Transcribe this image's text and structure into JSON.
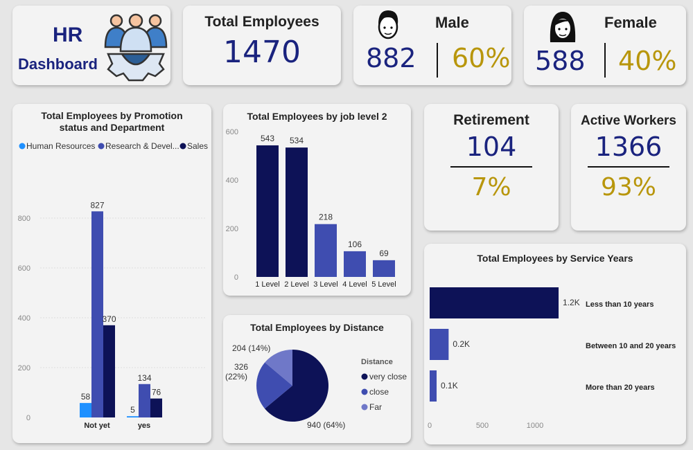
{
  "header": {
    "hr": "HR",
    "dashboard": "Dashboard"
  },
  "total": {
    "label": "Total Employees",
    "value": "1470"
  },
  "male": {
    "label": "Male",
    "value": "882",
    "pct": "60%"
  },
  "female": {
    "label": "Female",
    "value": "588",
    "pct": "40%"
  },
  "retirement": {
    "label": "Retirement",
    "value": "104",
    "pct": "7%"
  },
  "active": {
    "label": "Active Workers",
    "value": "1366",
    "pct": "93%"
  },
  "colors": {
    "navy": "#0d1257",
    "blue": "#3f4db0",
    "light": "#1e90ff",
    "lavender": "#6f78c8",
    "gold": "#b8960c"
  },
  "chart_data": [
    {
      "type": "bar",
      "title": "Total Employees by Promotion status and Department",
      "categories": [
        "Not yet",
        "yes"
      ],
      "ylim": [
        0,
        900
      ],
      "yticks": [
        "0",
        "200",
        "400",
        "600",
        "800"
      ],
      "legend": "top",
      "series": [
        {
          "name": "Human Resources",
          "values": [
            58,
            5
          ],
          "labels": [
            "58",
            "5"
          ]
        },
        {
          "name": "Research & Devel...",
          "values": [
            827,
            134
          ],
          "labels": [
            "827",
            "134"
          ]
        },
        {
          "name": "Sales",
          "values": [
            370,
            76
          ],
          "labels": [
            "370",
            "76"
          ]
        }
      ]
    },
    {
      "type": "bar",
      "title": "Total Employees by job level 2",
      "categories": [
        "1 Level",
        "2 Level",
        "3 Level",
        "4 Level",
        "5 Level"
      ],
      "values": [
        543,
        534,
        218,
        106,
        69
      ],
      "labels": [
        "543",
        "534",
        "218",
        "106",
        "69"
      ],
      "ylim": [
        0,
        600
      ],
      "yticks": [
        "0",
        "200",
        "400",
        "600"
      ]
    },
    {
      "type": "pie",
      "title": "Total Employees by Distance",
      "legend_title": "Distance",
      "slices": [
        {
          "name": "very close",
          "value": 940,
          "label": "940 (64%)"
        },
        {
          "name": "close",
          "value": 326,
          "label": "326 (22%)"
        },
        {
          "name": "Far",
          "value": 204,
          "label": "204 (14%)"
        }
      ]
    },
    {
      "type": "bar",
      "orientation": "horizontal",
      "title": "Total Employees by Service Years",
      "categories": [
        "Less than 10 years",
        "Between 10 and 20 years",
        "More than 20 years"
      ],
      "values": [
        1224,
        180,
        66
      ],
      "labels": [
        "1.2K",
        "0.2K",
        "0.1K"
      ],
      "xticks": [
        "0",
        "500",
        "1000"
      ]
    }
  ]
}
